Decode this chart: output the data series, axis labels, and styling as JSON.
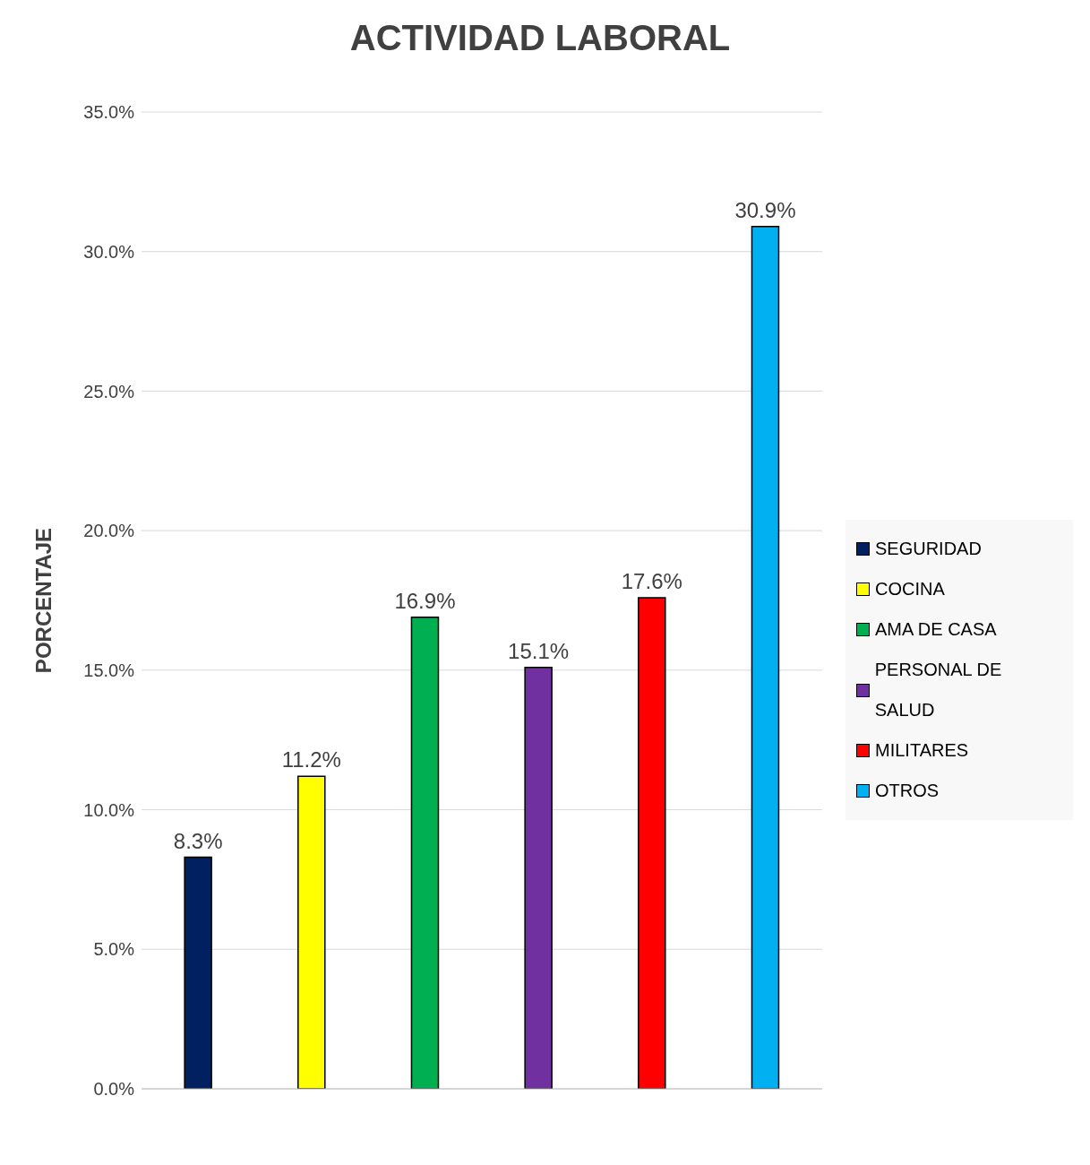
{
  "chart_data": {
    "type": "bar",
    "title": "ACTIVIDAD LABORAL",
    "ylabel": "PORCENTAJE",
    "categories": [
      null,
      null,
      null,
      null,
      null,
      null
    ],
    "series": [
      {
        "name": "SEGURIDAD",
        "color": "#002060",
        "values": [
          8.3,
          null,
          null,
          null,
          null,
          null
        ],
        "value_labels": [
          "8.3%",
          null,
          null,
          null,
          null,
          null
        ]
      },
      {
        "name": "COCINA",
        "color": "#ffff00",
        "values": [
          null,
          11.2,
          null,
          null,
          null,
          null
        ],
        "value_labels": [
          null,
          "11.2%",
          null,
          null,
          null,
          null
        ]
      },
      {
        "name": "AMA DE CASA",
        "color": "#00b050",
        "values": [
          null,
          null,
          16.9,
          null,
          null,
          null
        ],
        "value_labels": [
          null,
          null,
          "16.9%",
          null,
          null,
          null
        ]
      },
      {
        "name": "PERSONAL DE SALUD",
        "color": "#7030a0",
        "values": [
          null,
          null,
          null,
          15.1,
          null,
          null
        ],
        "value_labels": [
          null,
          null,
          null,
          "15.1%",
          null,
          null
        ]
      },
      {
        "name": "MILITARES",
        "color": "#ff0000",
        "values": [
          null,
          null,
          null,
          null,
          17.6,
          null
        ],
        "value_labels": [
          null,
          null,
          null,
          null,
          "17.6%",
          null
        ]
      },
      {
        "name": "OTROS",
        "color": "#00b0f0",
        "values": [
          null,
          null,
          null,
          null,
          null,
          30.9
        ],
        "value_labels": [
          null,
          null,
          null,
          null,
          null,
          "30.9%"
        ]
      }
    ],
    "ylim": [
      0,
      35
    ],
    "yticks": [
      {
        "value": 0,
        "label": "0.0%"
      },
      {
        "value": 5,
        "label": "5.0%"
      },
      {
        "value": 10,
        "label": "10.0%"
      },
      {
        "value": 15,
        "label": "15.0%"
      },
      {
        "value": 20,
        "label": "20.0%"
      },
      {
        "value": 25,
        "label": "25.0%"
      },
      {
        "value": 30,
        "label": "30.0%"
      },
      {
        "value": 35,
        "label": "35.0%"
      }
    ],
    "grid": "y",
    "legend": "right"
  }
}
